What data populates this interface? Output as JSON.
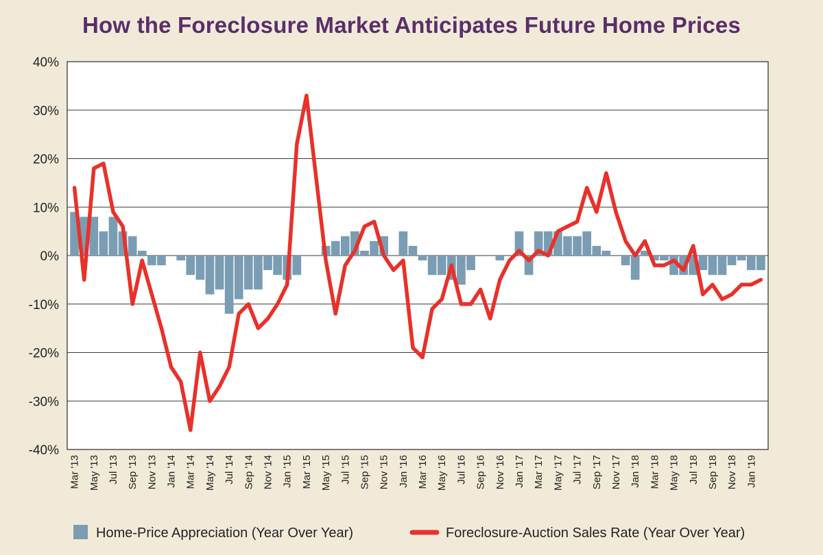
{
  "chart_data": {
    "type": "bar+line",
    "title": "How the Foreclosure Market Anticipates Future Home Prices",
    "xlabel": "",
    "ylabel": "",
    "ylim": [
      -40,
      40
    ],
    "y_ticks": [
      40,
      30,
      20,
      10,
      0,
      -10,
      -20,
      -30,
      -40
    ],
    "y_tick_labels": [
      "40%",
      "30%",
      "20%",
      "10%",
      "0%",
      "-10%",
      "-20%",
      "-30%",
      "-40%"
    ],
    "grid": true,
    "legend_position": "bottom",
    "categories": [
      "Mar '13",
      "Apr '13",
      "May '13",
      "Jun '13",
      "Jul '13",
      "Aug '13",
      "Sep '13",
      "Oct '13",
      "Nov '13",
      "Dec '13",
      "Jan '14",
      "Feb '14",
      "Mar '14",
      "Apr '14",
      "May '14",
      "Jun '14",
      "Jul '14",
      "Aug '14",
      "Sep '14",
      "Oct '14",
      "Nov '14",
      "Dec '14",
      "Jan '15",
      "Feb '15",
      "Mar '15",
      "Apr '15",
      "May '15",
      "Jun '15",
      "Jul '15",
      "Aug '15",
      "Sep '15",
      "Oct '15",
      "Nov '15",
      "Dec '15",
      "Jan '16",
      "Feb '16",
      "Mar '16",
      "Apr '16",
      "May '16",
      "Jun '16",
      "Jul '16",
      "Aug '16",
      "Sep '16",
      "Oct '16",
      "Nov '16",
      "Dec '16",
      "Jan '17",
      "Feb '17",
      "Mar '17",
      "Apr '17",
      "May '17",
      "Jun '17",
      "Jul '17",
      "Aug '17",
      "Sep '17",
      "Oct '17",
      "Nov '17",
      "Dec '17",
      "Jan '18",
      "Feb '18",
      "Mar '18",
      "Apr '18",
      "May '18",
      "Jun '18",
      "Jul '18",
      "Aug '18",
      "Sep '18",
      "Oct '18",
      "Nov '18",
      "Dec '18",
      "Jan '19",
      "Feb '19"
    ],
    "x_tick_labels": [
      "Mar '13",
      "May '13",
      "Jul '13",
      "Sep '13",
      "Nov '13",
      "Jan '14",
      "Mar '14",
      "May '14",
      "Jul '14",
      "Sep '14",
      "Nov '14",
      "Jan '15",
      "Mar '15",
      "May '15",
      "Jul '15",
      "Sep '15",
      "Nov '15",
      "Jan '16",
      "Mar '16",
      "May '16",
      "Jul '16",
      "Sep '16",
      "Nov '16",
      "Jan '17",
      "Mar '17",
      "May '17",
      "Jul '17",
      "Sep '17",
      "Nov '17",
      "Jan '18",
      "Mar '18",
      "May '18",
      "Jul '18",
      "Sep '18",
      "Nov '18",
      "Jan '19"
    ],
    "series": [
      {
        "name": "Home-Price Appreciation (Year Over Year)",
        "type": "bar",
        "color": "#7a9db3",
        "values": [
          9,
          8,
          8,
          5,
          8,
          5,
          4,
          1,
          -2,
          -2,
          0,
          -1,
          -4,
          -5,
          -8,
          -7,
          -12,
          -9,
          -7,
          -7,
          -3,
          -4,
          -5,
          -4,
          0,
          0,
          2,
          3,
          4,
          5,
          1,
          3,
          4,
          0,
          5,
          2,
          -1,
          -4,
          -4,
          -5,
          -6,
          -3,
          0,
          0,
          -1,
          0,
          5,
          -4,
          5,
          5,
          5,
          4,
          4,
          5,
          2,
          1,
          0,
          -2,
          -5,
          1,
          -1,
          -1,
          -4,
          -4,
          -4,
          -3,
          -4,
          -4,
          -2,
          -1,
          -3,
          -3
        ]
      },
      {
        "name": "Foreclosure-Auction Sales Rate (Year Over Year)",
        "type": "line",
        "color": "#e8312a",
        "values": [
          14,
          -5,
          18,
          19,
          9,
          6,
          -10,
          -1,
          -8,
          -15,
          -23,
          -26,
          -36,
          -20,
          -30,
          -27,
          -23,
          -12,
          -10,
          -15,
          -13,
          -10,
          -6,
          23,
          33,
          16,
          -1,
          -12,
          -2,
          1,
          6,
          7,
          0,
          -3,
          -1,
          -19,
          -21,
          -11,
          -9,
          -2,
          -10,
          -10,
          -7,
          -13,
          -5,
          -1,
          1,
          -1,
          1,
          0,
          5,
          6,
          7,
          14,
          9,
          17,
          9,
          3,
          0,
          3,
          -2,
          -2,
          -1,
          -3,
          2,
          -8,
          -6,
          -9,
          -8,
          -6,
          -6,
          -5
        ]
      }
    ]
  }
}
